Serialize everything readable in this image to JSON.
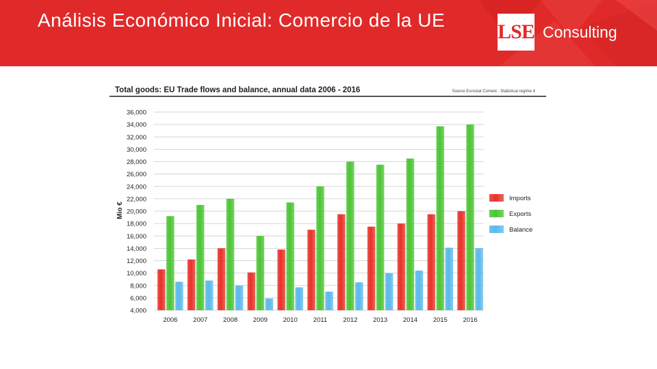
{
  "slide": {
    "title": "Análisis Económico Inicial: Comercio de la UE",
    "logo_mark": "LSE",
    "logo_text": "Consulting"
  },
  "colors": {
    "header_red": "#e02a2a",
    "imports": "#e8322a",
    "exports": "#4cc535",
    "balance": "#5bb8ec"
  },
  "chart_data": {
    "type": "bar",
    "title": "Total goods: EU Trade flows and balance, annual data 2006 - 2016",
    "source": "Source Eurostat Comext  - Statistical regime 4",
    "xlabel": "",
    "ylabel": "Mio €",
    "ylim": [
      4000,
      36000
    ],
    "yticks": [
      4000,
      6000,
      8000,
      10000,
      12000,
      14000,
      16000,
      18000,
      20000,
      22000,
      24000,
      26000,
      28000,
      30000,
      32000,
      34000,
      36000
    ],
    "ytick_labels": [
      "4,000",
      "6,000",
      "8,000",
      "10,000",
      "12,000",
      "14,000",
      "16,000",
      "18,000",
      "20,000",
      "22,000",
      "24,000",
      "26,000",
      "28,000",
      "30,000",
      "32,000",
      "34,000",
      "36,000"
    ],
    "grid": true,
    "legend_position": "right",
    "categories": [
      "2006",
      "2007",
      "2008",
      "2009",
      "2010",
      "2011",
      "2012",
      "2013",
      "2014",
      "2015",
      "2016"
    ],
    "series": [
      {
        "name": "Imports",
        "color": "#e8322a",
        "values": [
          10600,
          12200,
          14000,
          10100,
          13800,
          17000,
          19500,
          17500,
          18000,
          19500,
          20000
        ]
      },
      {
        "name": "Exports",
        "color": "#4cc535",
        "values": [
          19200,
          21000,
          22000,
          16000,
          21400,
          24000,
          28000,
          27500,
          28500,
          33700,
          34000
        ]
      },
      {
        "name": "Balance",
        "color": "#5bb8ec",
        "values": [
          8600,
          8800,
          8000,
          5900,
          7700,
          7000,
          8500,
          10000,
          10400,
          14100,
          14000
        ]
      }
    ]
  }
}
